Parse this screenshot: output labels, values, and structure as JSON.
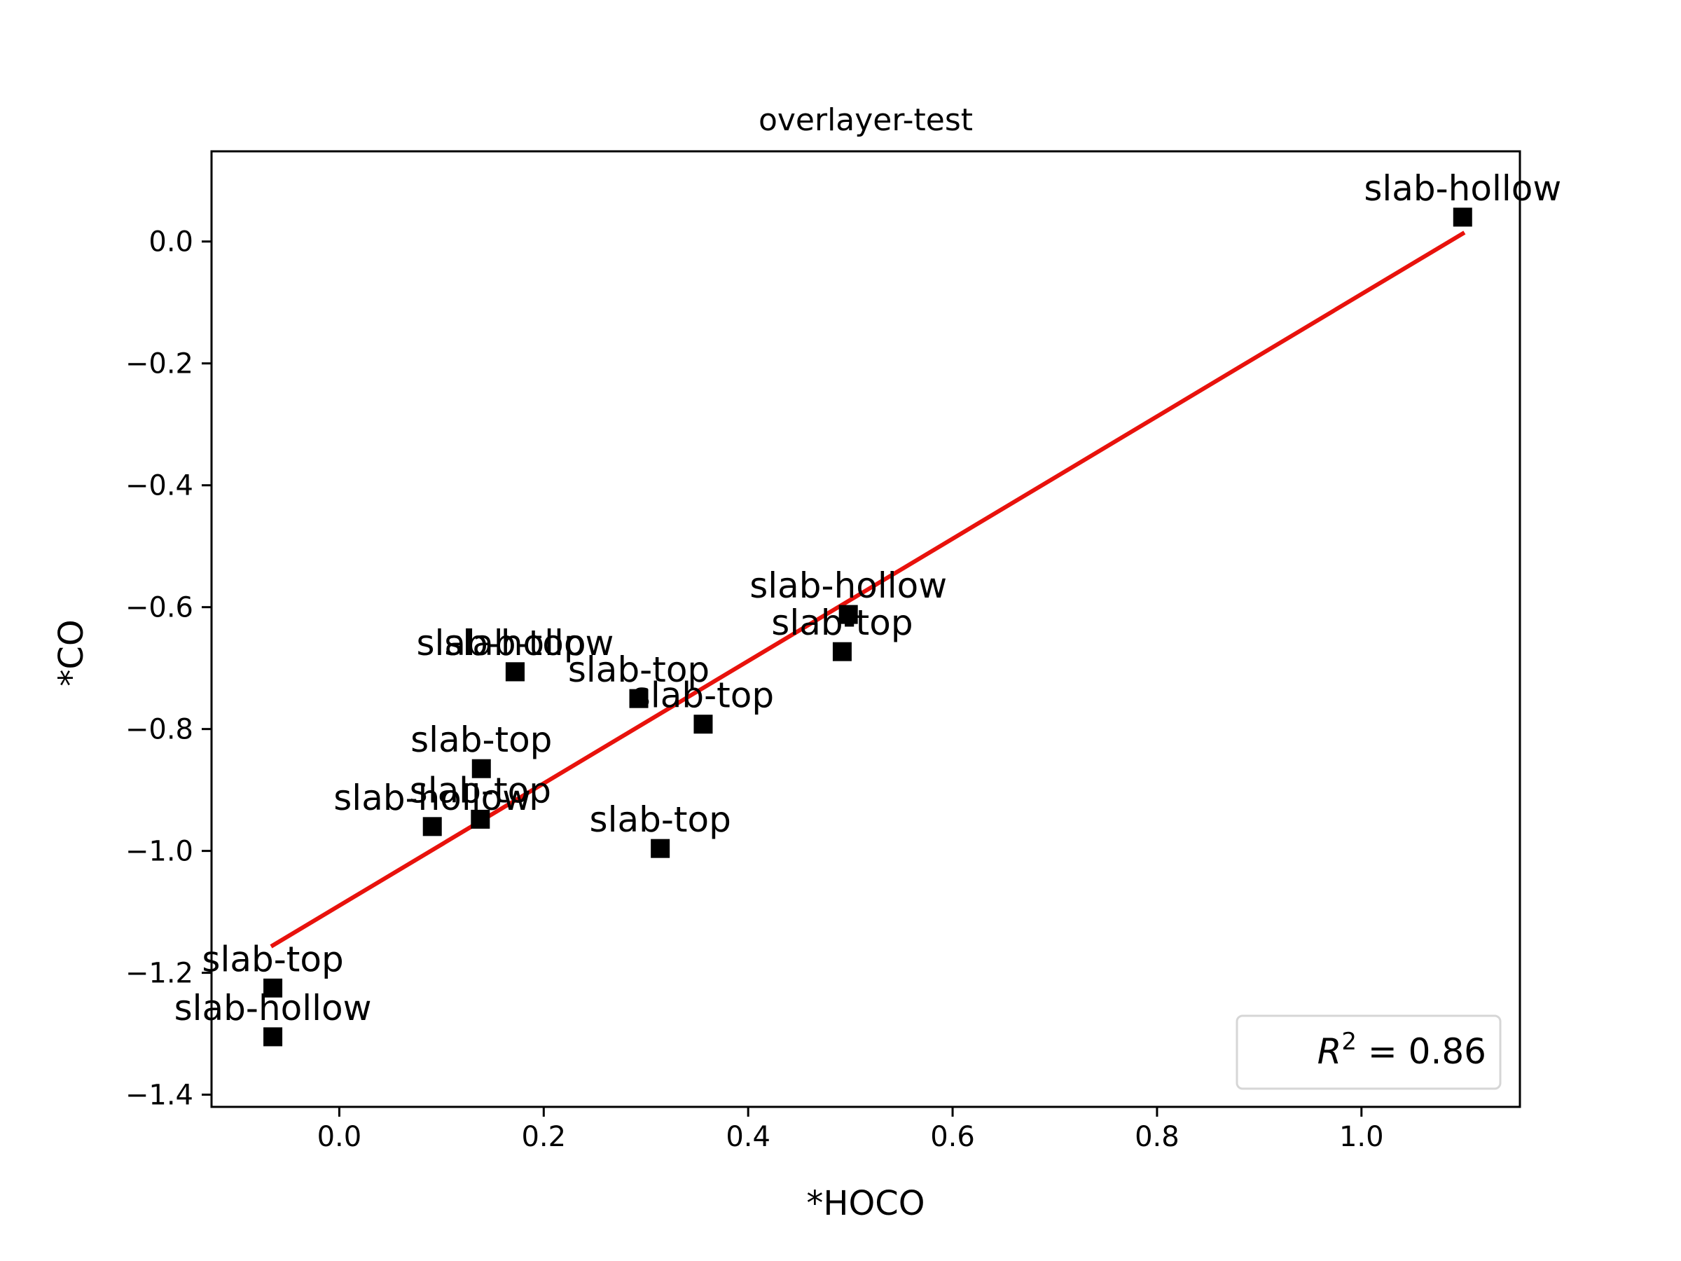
{
  "chart_data": {
    "type": "scatter",
    "title": "overlayer-test",
    "xlabel": "*HOCO",
    "ylabel": "*CO",
    "xlim": [
      -0.125,
      1.155
    ],
    "ylim": [
      -1.42,
      0.148
    ],
    "xticks": [
      {
        "value": 0.0,
        "label": "0.0"
      },
      {
        "value": 0.2,
        "label": "0.2"
      },
      {
        "value": 0.4,
        "label": "0.4"
      },
      {
        "value": 0.6,
        "label": "0.6"
      },
      {
        "value": 0.8,
        "label": "0.8"
      },
      {
        "value": 1.0,
        "label": "1.0"
      }
    ],
    "yticks": [
      {
        "value": 0.0,
        "label": "0.0"
      },
      {
        "value": -0.2,
        "label": "−0.2"
      },
      {
        "value": -0.4,
        "label": "−0.4"
      },
      {
        "value": -0.6,
        "label": "−0.6"
      },
      {
        "value": -0.8,
        "label": "−0.8"
      },
      {
        "value": -1.0,
        "label": "−1.0"
      },
      {
        "value": -1.2,
        "label": "−1.2"
      },
      {
        "value": -1.4,
        "label": "−1.4"
      }
    ],
    "points": [
      {
        "x": 1.099,
        "y": 0.04,
        "label": "slab-hollow"
      },
      {
        "x": 0.498,
        "y": -0.612,
        "label": "slab-hollow"
      },
      {
        "x": 0.492,
        "y": -0.673,
        "label": "slab-top"
      },
      {
        "x": 0.172,
        "y": -0.706,
        "label": "slab-hollow"
      },
      {
        "x": 0.172,
        "y": -0.706,
        "label": "slab-top"
      },
      {
        "x": 0.293,
        "y": -0.75,
        "label": "slab-top"
      },
      {
        "x": 0.356,
        "y": -0.792,
        "label": "slab-top"
      },
      {
        "x": 0.139,
        "y": -0.865,
        "label": "slab-top"
      },
      {
        "x": 0.138,
        "y": -0.948,
        "label": "slab-top"
      },
      {
        "x": 0.091,
        "y": -0.96,
        "label": "slab-hollow"
      },
      {
        "x": 0.314,
        "y": -0.996,
        "label": "slab-top"
      },
      {
        "x": -0.065,
        "y": -1.225,
        "label": "slab-top"
      },
      {
        "x": -0.065,
        "y": -1.305,
        "label": "slab-hollow"
      }
    ],
    "fit_line": {
      "x": [
        -0.065,
        1.099
      ],
      "y": [
        -1.155,
        0.013
      ],
      "color": "#e8120c"
    },
    "annotation": {
      "prefix": "R",
      "superscript": "2",
      "value": " = 0.86",
      "placement": "lower-right"
    },
    "grid": false,
    "marker": {
      "shape": "square",
      "color": "#000000"
    }
  }
}
